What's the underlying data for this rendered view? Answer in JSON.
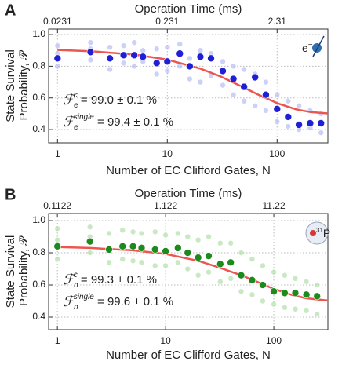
{
  "chart_data": [
    {
      "type": "scatter",
      "panel_label": "A",
      "x2label": "Operation Time (ms)",
      "xlabel": "Number of EC Clifford Gates, N",
      "ylabel": [
        "State Survival",
        "Probability, 𝒫"
      ],
      "xscale": "log",
      "xlim": [
        0.83,
        290
      ],
      "xticks": [
        1,
        10,
        100
      ],
      "x2lim": [
        0.019173,
        6.699
      ],
      "x2ticks": [
        0.0231,
        0.231,
        2.31
      ],
      "ylim": [
        0.316,
        1.035
      ],
      "yticks": [
        0.4,
        0.6,
        0.8,
        {
          "value": 1,
          "label": "1.0"
        }
      ],
      "grid": true,
      "raw": {
        "color": "#b7bdf4",
        "x": [
          1,
          1,
          1,
          2,
          2,
          2,
          3,
          3,
          4,
          4,
          5,
          5,
          6,
          6,
          8,
          8,
          10,
          10,
          13,
          13,
          16,
          16,
          20,
          20,
          25,
          25,
          32,
          32,
          40,
          40,
          50,
          50,
          63,
          63,
          79,
          79,
          100,
          100,
          126,
          126,
          158,
          158,
          200,
          200,
          251,
          251
        ],
        "values": [
          0.93,
          0.8,
          0.88,
          0.95,
          0.84,
          0.91,
          0.92,
          0.78,
          0.93,
          0.82,
          0.95,
          0.8,
          0.9,
          0.83,
          0.91,
          0.75,
          0.92,
          0.77,
          0.94,
          0.8,
          0.85,
          0.72,
          0.9,
          0.7,
          0.88,
          0.74,
          0.83,
          0.68,
          0.8,
          0.62,
          0.78,
          0.58,
          0.75,
          0.55,
          0.7,
          0.52,
          0.62,
          0.45,
          0.58,
          0.42,
          0.55,
          0.4,
          0.52,
          0.41,
          0.5,
          0.38
        ]
      },
      "mean": {
        "color": "#1f1fd6",
        "x": [
          1,
          2,
          3,
          4,
          5,
          6,
          8,
          10,
          13,
          16,
          20,
          25,
          32,
          40,
          50,
          63,
          79,
          100,
          126,
          158,
          200,
          251
        ],
        "values": [
          0.85,
          0.89,
          0.85,
          0.87,
          0.87,
          0.86,
          0.82,
          0.83,
          0.88,
          0.8,
          0.86,
          0.85,
          0.77,
          0.72,
          0.67,
          0.73,
          0.62,
          0.53,
          0.48,
          0.43,
          0.44,
          0.44
        ]
      },
      "fit": {
        "color": "#ec5650",
        "x": [
          1,
          2,
          5,
          10,
          20,
          30,
          50,
          70,
          100,
          150,
          200,
          290
        ],
        "values": [
          0.903,
          0.895,
          0.874,
          0.842,
          0.785,
          0.738,
          0.665,
          0.615,
          0.567,
          0.527,
          0.511,
          0.502
        ]
      },
      "fidelities": [
        {
          "symbol": "ℱ",
          "sub": "e",
          "sup": "c",
          "text": " = 99.0 ± 0.1 %"
        },
        {
          "symbol": "ℱ",
          "sub": "e",
          "sup": "single",
          "text": " = 99.4 ± 0.1 %"
        }
      ],
      "icon": {
        "text": "e",
        "sup": "−",
        "color": "#2f6fb0"
      }
    },
    {
      "type": "scatter",
      "panel_label": "B",
      "x2label": "Operation Time (ms)",
      "xlabel": "Number of EC Clifford Gates, N",
      "ylabel": [
        "State Survival",
        "Probability, 𝒫"
      ],
      "xscale": "log",
      "xlim": [
        0.83,
        316
      ],
      "xticks": [
        1,
        10,
        100
      ],
      "x2lim": [
        0.093126,
        35.455
      ],
      "x2ticks": [
        0.1122,
        1.122,
        11.22
      ],
      "ylim": [
        0.322,
        1.044
      ],
      "yticks": [
        0.4,
        0.6,
        0.8,
        {
          "value": 1,
          "label": "1.0"
        }
      ],
      "grid": true,
      "raw": {
        "color": "#b2dfaa",
        "x": [
          1,
          1,
          1,
          2,
          2,
          2,
          3,
          3,
          4,
          4,
          5,
          5,
          6,
          6,
          8,
          8,
          10,
          10,
          13,
          13,
          16,
          16,
          20,
          20,
          25,
          25,
          32,
          32,
          40,
          40,
          50,
          50,
          63,
          63,
          79,
          79,
          100,
          100,
          126,
          126,
          158,
          158,
          200,
          200,
          251,
          251
        ],
        "values": [
          0.95,
          0.76,
          0.88,
          0.96,
          0.8,
          0.9,
          0.92,
          0.74,
          0.94,
          0.76,
          0.93,
          0.75,
          0.92,
          0.74,
          0.93,
          0.72,
          0.91,
          0.72,
          0.92,
          0.74,
          0.9,
          0.7,
          0.88,
          0.66,
          0.9,
          0.68,
          0.86,
          0.62,
          0.86,
          0.64,
          0.8,
          0.56,
          0.76,
          0.54,
          0.72,
          0.5,
          0.68,
          0.48,
          0.66,
          0.46,
          0.64,
          0.45,
          0.62,
          0.44,
          0.6,
          0.42
        ]
      },
      "mean": {
        "color": "#1d8a1d",
        "x": [
          1,
          2,
          3,
          4,
          5,
          6,
          8,
          10,
          13,
          16,
          20,
          25,
          32,
          40,
          50,
          63,
          79,
          100,
          126,
          158,
          200,
          251
        ],
        "values": [
          0.84,
          0.87,
          0.82,
          0.84,
          0.84,
          0.83,
          0.82,
          0.81,
          0.83,
          0.8,
          0.77,
          0.78,
          0.73,
          0.74,
          0.66,
          0.63,
          0.6,
          0.56,
          0.55,
          0.55,
          0.54,
          0.53
        ]
      },
      "fit": {
        "color": "#ec5650",
        "x": [
          1,
          2,
          5,
          10,
          20,
          30,
          50,
          70,
          100,
          150,
          200,
          316
        ],
        "values": [
          0.835,
          0.83,
          0.815,
          0.793,
          0.75,
          0.713,
          0.66,
          0.62,
          0.575,
          0.536,
          0.517,
          0.503
        ]
      },
      "fidelities": [
        {
          "symbol": "ℱ",
          "sub": "n",
          "sup": "c",
          "text": " = 99.3 ± 0.1 %"
        },
        {
          "symbol": "ℱ",
          "sub": "n",
          "sup": "single",
          "text": " = 99.6 ± 0.1 %"
        }
      ],
      "icon": {
        "text": "P",
        "sup": "31",
        "color": "#d23a3a"
      }
    }
  ]
}
